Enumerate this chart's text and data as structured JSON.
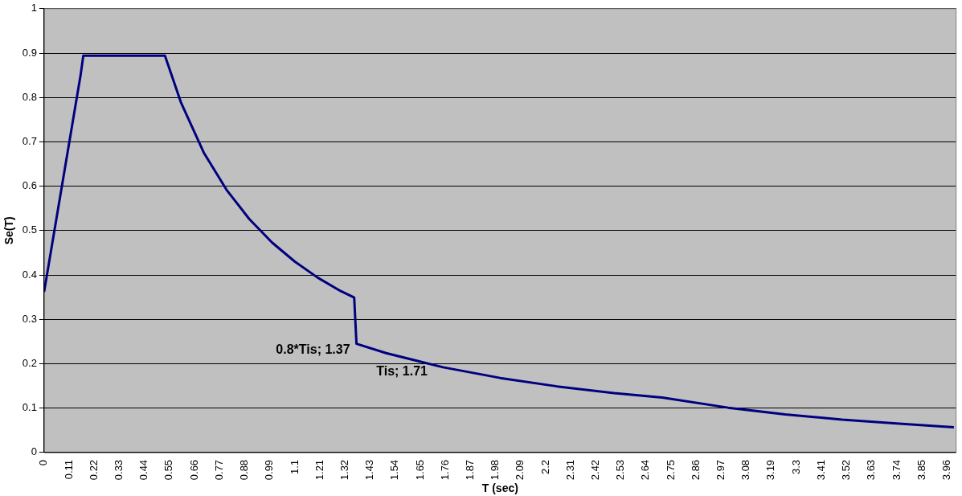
{
  "chart_data": {
    "type": "line",
    "xlabel": "T (sec)",
    "ylabel": "Se(T)",
    "x": [
      0,
      0.16,
      0.172,
      0.53,
      0.6,
      0.7,
      0.8,
      0.9,
      1.0,
      1.1,
      1.2,
      1.3,
      1.36,
      1.37,
      1.5,
      1.75,
      2.0,
      2.25,
      2.5,
      2.71,
      3.0,
      3.25,
      3.5,
      3.75,
      3.99
    ],
    "series": [
      {
        "color": "#000080",
        "values": [
          0.362,
          0.85,
          0.894,
          0.894,
          0.789,
          0.676,
          0.592,
          0.526,
          0.473,
          0.43,
          0.394,
          0.364,
          0.349,
          0.245,
          0.224,
          0.192,
          0.168,
          0.149,
          0.134,
          0.124,
          0.101,
          0.086,
          0.074,
          0.065,
          0.057
        ]
      }
    ],
    "xlim": [
      0,
      4
    ],
    "xticks": [
      0,
      0.11,
      0.22,
      0.33,
      0.44,
      0.55,
      0.66,
      0.77,
      0.88,
      0.99,
      1.1,
      1.21,
      1.32,
      1.43,
      1.54,
      1.65,
      1.76,
      1.87,
      1.98,
      2.09,
      2.2,
      2.31,
      2.42,
      2.53,
      2.64,
      2.75,
      2.86,
      2.97,
      3.08,
      3.19,
      3.3,
      3.41,
      3.52,
      3.63,
      3.74,
      3.85,
      3.96
    ],
    "ylim": [
      0,
      1
    ],
    "yticks": [
      0,
      0.1,
      0.2,
      0.3,
      0.4,
      0.5,
      0.6,
      0.7,
      0.8,
      0.9,
      1
    ],
    "grid": "y",
    "legend": false,
    "marker": "none",
    "line_style": "solid",
    "annotations": [
      {
        "text": "0.8*Tis; 1.37",
        "x": 1.37,
        "y": 0.245
      },
      {
        "text": "Tis; 1.71",
        "x": 1.71,
        "y": 0.196
      }
    ]
  }
}
